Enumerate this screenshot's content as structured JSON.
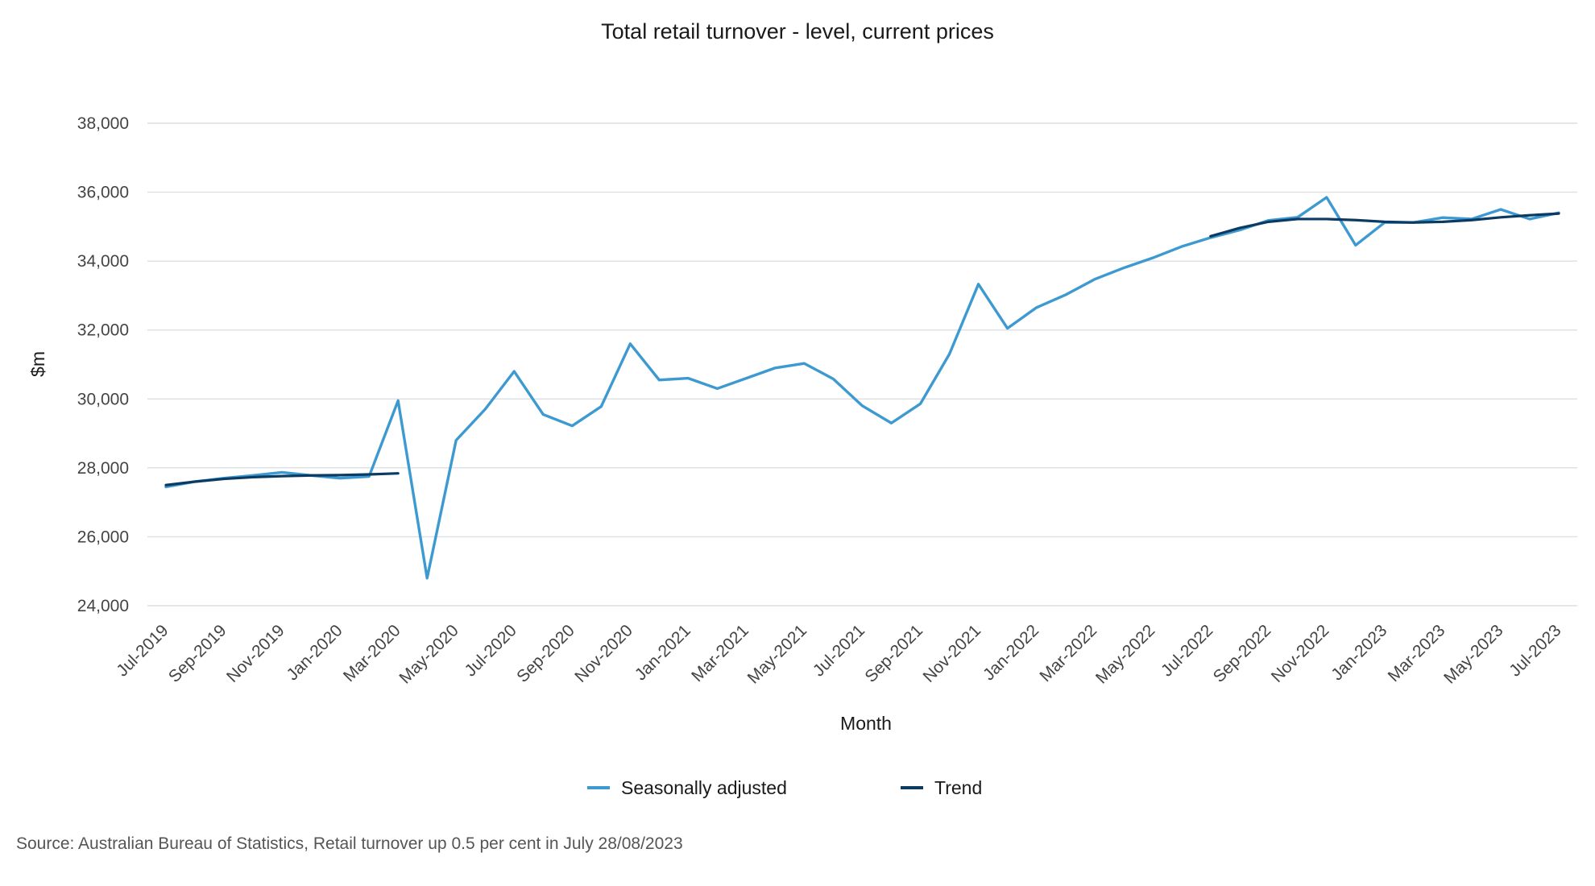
{
  "chart_data": {
    "type": "line",
    "title": "Total retail turnover - level, current prices",
    "xlabel": "Month",
    "ylabel": "$m",
    "ylim": [
      24000,
      38000
    ],
    "yticks": [
      24000,
      26000,
      28000,
      30000,
      32000,
      34000,
      36000,
      38000
    ],
    "ytick_labels": [
      "24,000",
      "26,000",
      "28,000",
      "30,000",
      "32,000",
      "34,000",
      "36,000",
      "38,000"
    ],
    "x": [
      "Jul-2019",
      "Aug-2019",
      "Sep-2019",
      "Oct-2019",
      "Nov-2019",
      "Dec-2019",
      "Jan-2020",
      "Feb-2020",
      "Mar-2020",
      "Apr-2020",
      "May-2020",
      "Jun-2020",
      "Jul-2020",
      "Aug-2020",
      "Sep-2020",
      "Oct-2020",
      "Nov-2020",
      "Dec-2020",
      "Jan-2021",
      "Feb-2021",
      "Mar-2021",
      "Apr-2021",
      "May-2021",
      "Jun-2021",
      "Jul-2021",
      "Aug-2021",
      "Sep-2021",
      "Oct-2021",
      "Nov-2021",
      "Dec-2021",
      "Jan-2022",
      "Feb-2022",
      "Mar-2022",
      "Apr-2022",
      "May-2022",
      "Jun-2022",
      "Jul-2022",
      "Aug-2022",
      "Sep-2022",
      "Oct-2022",
      "Nov-2022",
      "Dec-2022",
      "Jan-2023",
      "Feb-2023",
      "Mar-2023",
      "Apr-2023",
      "May-2023",
      "Jun-2023",
      "Jul-2023"
    ],
    "xtick_labels": [
      "Jul-2019",
      "Sep-2019",
      "Nov-2019",
      "Jan-2020",
      "Mar-2020",
      "May-2020",
      "Jul-2020",
      "Sep-2020",
      "Nov-2020",
      "Jan-2021",
      "Mar-2021",
      "May-2021",
      "Jul-2021",
      "Sep-2021",
      "Nov-2021",
      "Jan-2022",
      "Mar-2022",
      "May-2022",
      "Jul-2022",
      "Sep-2022",
      "Nov-2022",
      "Jan-2023",
      "Mar-2023",
      "May-2023",
      "Jul-2023"
    ],
    "series": [
      {
        "name": "Seasonally adjusted",
        "color": "#3d9ad1",
        "values": [
          27450,
          27600,
          27700,
          27780,
          27870,
          27780,
          27700,
          27750,
          29950,
          24800,
          28800,
          29700,
          30800,
          29550,
          29220,
          29780,
          31600,
          30550,
          30600,
          30300,
          30600,
          30900,
          31030,
          30580,
          29800,
          29300,
          29860,
          31300,
          33330,
          32050,
          32650,
          33020,
          33470,
          33800,
          34090,
          34420,
          34680,
          34900,
          35180,
          35270,
          35850,
          34460,
          35120,
          35120,
          35260,
          35220,
          35500,
          35220,
          35400
        ]
      },
      {
        "name": "Trend",
        "color": "#0b3a63",
        "values": [
          27500,
          27600,
          27680,
          27730,
          27760,
          27780,
          27790,
          27810,
          27840,
          null,
          null,
          null,
          null,
          null,
          null,
          null,
          null,
          null,
          null,
          null,
          null,
          null,
          null,
          null,
          null,
          null,
          null,
          null,
          null,
          null,
          null,
          null,
          null,
          null,
          null,
          null,
          34720,
          34960,
          35140,
          35220,
          35220,
          35190,
          35140,
          35120,
          35140,
          35190,
          35270,
          35330,
          35380
        ]
      }
    ],
    "legend_position": "bottom",
    "grid": true
  },
  "source_text": "Source: Australian Bureau of Statistics, Retail turnover up 0.5 per cent in July 28/08/2023"
}
